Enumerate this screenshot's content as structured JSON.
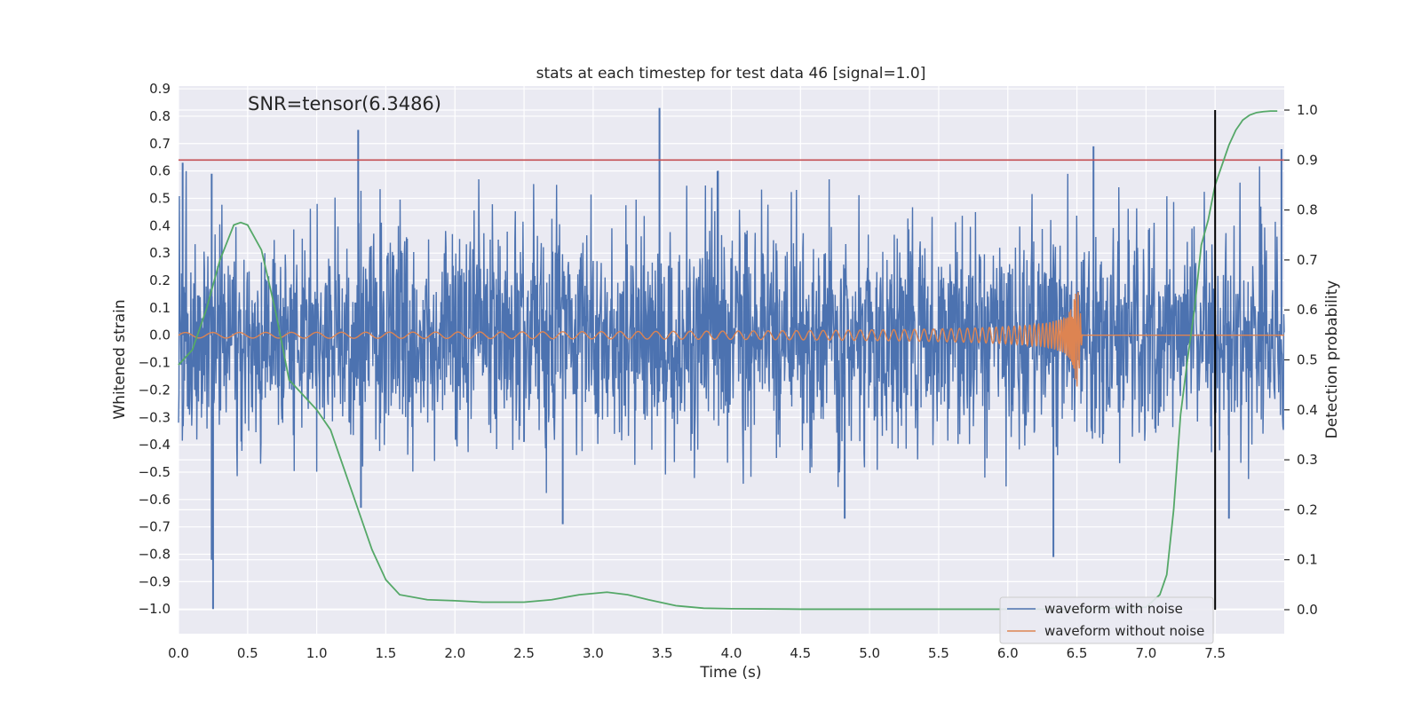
{
  "chart_data": {
    "type": "line",
    "title": "stats at each timestep for test data 46 [signal=1.0]",
    "annotation": "SNR=tensor(6.3486)",
    "xlabel": "Time (s)",
    "ylabel": "Whitened strain",
    "y2label": "Detection probability",
    "xlim": [
      0.0,
      8.0
    ],
    "ylim": [
      -1.09,
      0.91
    ],
    "y2lim": [
      -0.048,
      1.048
    ],
    "x_ticks": [
      0.0,
      0.5,
      1.0,
      1.5,
      2.0,
      2.5,
      3.0,
      3.5,
      4.0,
      4.5,
      5.0,
      5.5,
      6.0,
      6.5,
      7.0,
      7.5
    ],
    "x_tick_labels": [
      "0.0",
      "0.5",
      "1.0",
      "1.5",
      "2.0",
      "2.5",
      "3.0",
      "3.5",
      "4.0",
      "4.5",
      "5.0",
      "5.5",
      "6.0",
      "6.5",
      "7.0",
      "7.5"
    ],
    "y_ticks": [
      0.9,
      0.8,
      0.7,
      0.6,
      0.5,
      0.4,
      0.3,
      0.2,
      0.1,
      0.0,
      -0.1,
      -0.2,
      -0.3,
      -0.4,
      -0.5,
      -0.6,
      -0.7,
      -0.8,
      -0.9,
      -1.0
    ],
    "y_tick_labels": [
      "0.9",
      "0.8",
      "0.7",
      "0.6",
      "0.5",
      "0.4",
      "0.3",
      "0.2",
      "0.1",
      "0.0",
      "−0.1",
      "−0.2",
      "−0.3",
      "−0.4",
      "−0.5",
      "−0.6",
      "−0.7",
      "−0.8",
      "−0.9",
      "−1.0"
    ],
    "y2_ticks": [
      1.0,
      0.9,
      0.8,
      0.7,
      0.6,
      0.5,
      0.4,
      0.3,
      0.2,
      0.1,
      0.0
    ],
    "y2_tick_labels": [
      "1.0",
      "0.9",
      "0.8",
      "0.7",
      "0.6",
      "0.5",
      "0.4",
      "0.3",
      "0.2",
      "0.1",
      "0.0"
    ],
    "grid": true,
    "legend_position": "bottom-right",
    "threshold": {
      "axis": "y2",
      "value": 0.9,
      "color": "#c44e52"
    },
    "event_marker": {
      "x": 7.5,
      "y2_range": [
        0.0,
        1.0
      ],
      "color": "#000000"
    },
    "series": [
      {
        "name": "waveform with noise",
        "axis": "y",
        "color": "#4c72b0",
        "envelope_typical": 0.45,
        "spikes": [
          {
            "x": 0.03,
            "y": 0.63
          },
          {
            "x": 0.24,
            "y": 0.59
          },
          {
            "x": 0.25,
            "y": -1.0
          },
          {
            "x": 0.24,
            "y": -0.82
          },
          {
            "x": 1.3,
            "y": 0.75
          },
          {
            "x": 1.32,
            "y": -0.63
          },
          {
            "x": 2.78,
            "y": -0.69
          },
          {
            "x": 3.48,
            "y": 0.83
          },
          {
            "x": 3.9,
            "y": 0.6
          },
          {
            "x": 4.82,
            "y": -0.67
          },
          {
            "x": 6.33,
            "y": -0.81
          },
          {
            "x": 6.62,
            "y": 0.69
          },
          {
            "x": 7.6,
            "y": -0.67
          },
          {
            "x": 7.98,
            "y": 0.68
          }
        ]
      },
      {
        "name": "waveform without noise",
        "axis": "y",
        "color": "#dd8452",
        "amplitude_start": 0.01,
        "amplitude_peak": 0.17,
        "merger_time": 6.5
      },
      {
        "name": "",
        "axis": "y2",
        "color": "#55a868",
        "x": [
          0.0,
          0.1,
          0.2,
          0.3,
          0.4,
          0.45,
          0.5,
          0.6,
          0.7,
          0.8,
          0.9,
          1.0,
          1.1,
          1.2,
          1.3,
          1.4,
          1.5,
          1.6,
          1.8,
          2.0,
          2.2,
          2.5,
          2.7,
          2.9,
          3.1,
          3.25,
          3.4,
          3.6,
          3.8,
          4.0,
          4.5,
          5.0,
          5.5,
          6.0,
          6.5,
          7.0,
          7.1,
          7.15,
          7.2,
          7.25,
          7.3,
          7.35,
          7.4,
          7.45,
          7.5,
          7.55,
          7.6,
          7.65,
          7.7,
          7.75,
          7.8,
          7.85,
          7.9,
          7.95
        ],
        "y": [
          0.49,
          0.52,
          0.6,
          0.7,
          0.77,
          0.775,
          0.77,
          0.72,
          0.6,
          0.46,
          0.43,
          0.4,
          0.36,
          0.28,
          0.2,
          0.12,
          0.06,
          0.03,
          0.02,
          0.018,
          0.015,
          0.015,
          0.02,
          0.03,
          0.035,
          0.03,
          0.02,
          0.008,
          0.003,
          0.002,
          0.001,
          0.001,
          0.001,
          0.001,
          0.001,
          0.005,
          0.03,
          0.07,
          0.2,
          0.39,
          0.5,
          0.6,
          0.73,
          0.78,
          0.85,
          0.89,
          0.93,
          0.96,
          0.98,
          0.99,
          0.995,
          0.997,
          0.998,
          0.998
        ]
      }
    ]
  }
}
